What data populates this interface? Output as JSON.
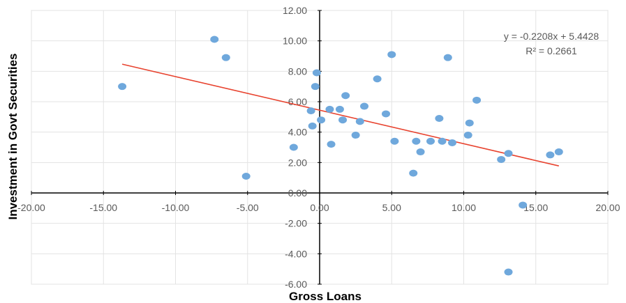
{
  "chart_data": {
    "type": "scatter",
    "xlabel": "Gross Loans",
    "ylabel": "Investment in Govt Securities",
    "xlim": [
      -20,
      20
    ],
    "ylim": [
      -6,
      12
    ],
    "x_ticks": [
      -20,
      -15,
      -10,
      -5,
      0,
      5,
      10,
      15,
      20
    ],
    "y_ticks": [
      -6,
      -4,
      -2,
      0,
      2,
      4,
      6,
      8,
      10,
      12
    ],
    "x_tick_labels": [
      "-20.00",
      "-15.00",
      "-10.00",
      "-5.00",
      "0.00",
      "5.00",
      "10.00",
      "15.00",
      "20.00"
    ],
    "y_tick_labels": [
      "-6.00",
      "-4.00",
      "-2.00",
      "0.00",
      "2.00",
      "4.00",
      "6.00",
      "8.00",
      "10.00",
      "12.00"
    ],
    "grid": true,
    "series": [
      {
        "points": [
          {
            "x": -13.7,
            "y": 7.0
          },
          {
            "x": -7.3,
            "y": 10.1
          },
          {
            "x": -6.5,
            "y": 8.9
          },
          {
            "x": -5.1,
            "y": 1.1
          },
          {
            "x": -1.8,
            "y": 3.0
          },
          {
            "x": -0.6,
            "y": 5.4
          },
          {
            "x": -0.5,
            "y": 4.4
          },
          {
            "x": -0.3,
            "y": 7.0
          },
          {
            "x": -0.2,
            "y": 7.9
          },
          {
            "x": 0.1,
            "y": 4.8
          },
          {
            "x": 0.7,
            "y": 5.5
          },
          {
            "x": 0.8,
            "y": 3.2
          },
          {
            "x": 1.4,
            "y": 5.5
          },
          {
            "x": 1.6,
            "y": 4.8
          },
          {
            "x": 1.8,
            "y": 6.4
          },
          {
            "x": 2.5,
            "y": 3.8
          },
          {
            "x": 2.8,
            "y": 4.7
          },
          {
            "x": 3.1,
            "y": 5.7
          },
          {
            "x": 4.0,
            "y": 7.5
          },
          {
            "x": 4.6,
            "y": 5.2
          },
          {
            "x": 5.0,
            "y": 9.1
          },
          {
            "x": 5.2,
            "y": 3.4
          },
          {
            "x": 6.5,
            "y": 1.3
          },
          {
            "x": 6.7,
            "y": 3.4
          },
          {
            "x": 7.0,
            "y": 2.7
          },
          {
            "x": 7.7,
            "y": 3.4
          },
          {
            "x": 8.3,
            "y": 4.9
          },
          {
            "x": 8.5,
            "y": 3.4
          },
          {
            "x": 8.9,
            "y": 8.9
          },
          {
            "x": 9.2,
            "y": 3.3
          },
          {
            "x": 10.3,
            "y": 3.8
          },
          {
            "x": 10.4,
            "y": 4.6
          },
          {
            "x": 10.9,
            "y": 6.1
          },
          {
            "x": 12.6,
            "y": 2.2
          },
          {
            "x": 13.1,
            "y": 2.6
          },
          {
            "x": 13.1,
            "y": -5.2
          },
          {
            "x": 14.1,
            "y": -0.8
          },
          {
            "x": 16.0,
            "y": 2.5
          },
          {
            "x": 16.6,
            "y": 2.7
          }
        ],
        "color": "#6fa8dc"
      }
    ],
    "trendline": {
      "slope": -0.2208,
      "intercept": 5.4428,
      "x_range": [
        -13.7,
        16.6
      ],
      "color": "#e8432f",
      "equation": "y = -0.2208x + 5.4428",
      "r_squared": "R² = 0.2661"
    }
  }
}
